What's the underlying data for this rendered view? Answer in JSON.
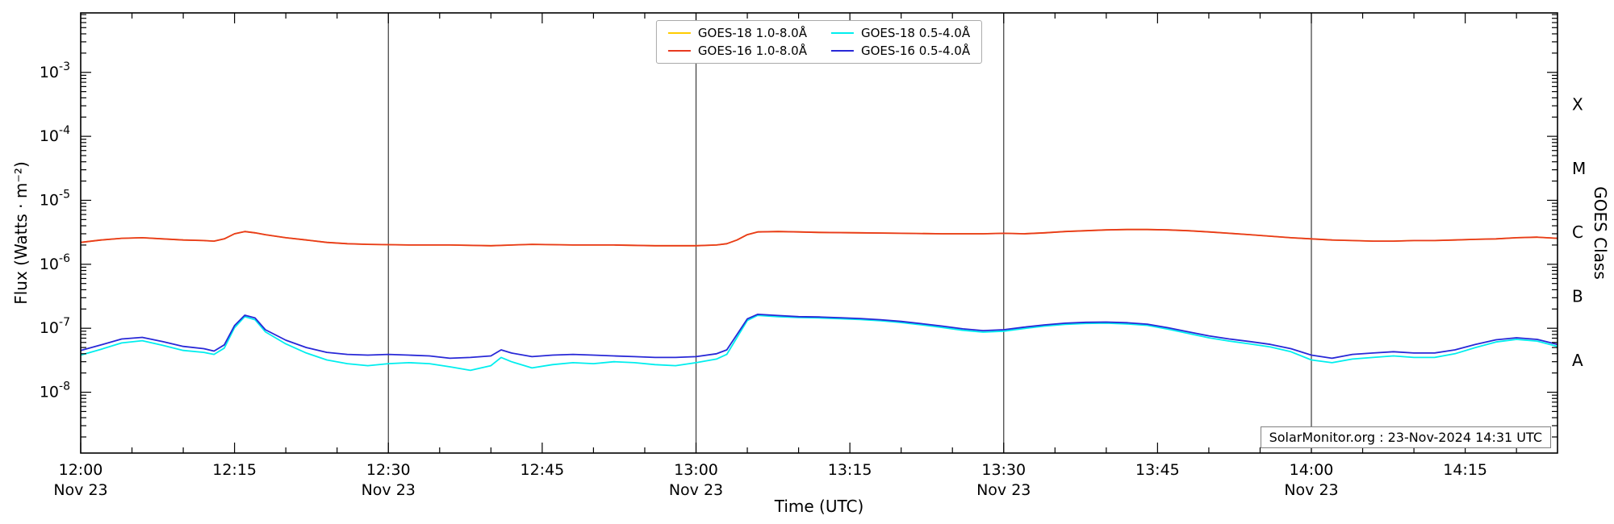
{
  "figure": {
    "background": "#ffffff",
    "watermark": "SolarMonitor.org : 23-Nov-2024 14:31 UTC"
  },
  "axes": {
    "xlabel": "Time (UTC)",
    "ylabel_left": "Flux (Watts · m⁻²)",
    "ylabel_right": "GOES Class"
  },
  "legend": {
    "items": [
      {
        "label": "GOES-18 1.0-8.0Å",
        "color": "#ffcc00"
      },
      {
        "label": "GOES-16 1.0-8.0Å",
        "color": "#e8391f"
      },
      {
        "label": "GOES-18 0.5-4.0Å",
        "color": "#00eeee"
      },
      {
        "label": "GOES-16 0.5-4.0Å",
        "color": "#2828d7"
      }
    ]
  },
  "chart_data": {
    "type": "line",
    "title": "",
    "xlabel": "Time (UTC)",
    "ylabel": "Flux (Watts · m⁻²)",
    "ylabel_right": "GOES Class",
    "y_scale": "log",
    "ylim": [
      1.12e-09,
      0.0085
    ],
    "x_unit": "minutes after 12:00 UTC on 23-Nov-2024",
    "x_range_minutes": [
      0,
      144
    ],
    "y_tick_exponents": [
      -8,
      -7,
      -6,
      -5,
      -4,
      -3
    ],
    "x_ticks": [
      {
        "minutes": 0,
        "label": "12:00",
        "sublabel": "Nov 23"
      },
      {
        "minutes": 15,
        "label": "12:15"
      },
      {
        "minutes": 30,
        "label": "12:30",
        "sublabel": "Nov 23"
      },
      {
        "minutes": 45,
        "label": "12:45"
      },
      {
        "minutes": 60,
        "label": "13:00",
        "sublabel": "Nov 23"
      },
      {
        "minutes": 75,
        "label": "13:15"
      },
      {
        "minutes": 90,
        "label": "13:30",
        "sublabel": "Nov 23"
      },
      {
        "minutes": 105,
        "label": "13:45"
      },
      {
        "minutes": 120,
        "label": "14:00",
        "sublabel": "Nov 23"
      },
      {
        "minutes": 135,
        "label": "14:15"
      }
    ],
    "vertical_lines_minutes": [
      30,
      60,
      90,
      120
    ],
    "goes_classes": [
      {
        "label": "A",
        "flux": 3.16e-08
      },
      {
        "label": "B",
        "flux": 3.16e-07
      },
      {
        "label": "C",
        "flux": 3.16e-06
      },
      {
        "label": "M",
        "flux": 3.16e-05
      },
      {
        "label": "X",
        "flux": 0.000316
      }
    ],
    "series": [
      {
        "name": "GOES-18 1.0-8.0Å",
        "color": "#ffcc00",
        "x": [
          0,
          2,
          4,
          6,
          8,
          10,
          12,
          13,
          14,
          15,
          16,
          17,
          18,
          20,
          22,
          24,
          26,
          28,
          32,
          36,
          40,
          44,
          48,
          52,
          56,
          60,
          62,
          63,
          64,
          65,
          66,
          68,
          70,
          72,
          76,
          80,
          84,
          88,
          90,
          92,
          94,
          96,
          98,
          100,
          102,
          104,
          106,
          108,
          110,
          112,
          114,
          116,
          118,
          120,
          122,
          124,
          126,
          128,
          130,
          132,
          134,
          136,
          138,
          140,
          142,
          144
        ],
        "y": [
          2.2e-06,
          2.4e-06,
          2.55e-06,
          2.6e-06,
          2.5e-06,
          2.4e-06,
          2.35e-06,
          2.3e-06,
          2.5e-06,
          3e-06,
          3.25e-06,
          3.1e-06,
          2.9e-06,
          2.6e-06,
          2.4e-06,
          2.2e-06,
          2.1e-06,
          2.05e-06,
          2e-06,
          2e-06,
          1.95e-06,
          2.05e-06,
          2e-06,
          2e-06,
          1.95e-06,
          1.95e-06,
          2e-06,
          2.1e-06,
          2.4e-06,
          2.9e-06,
          3.2e-06,
          3.25e-06,
          3.2e-06,
          3.15e-06,
          3.1e-06,
          3.05e-06,
          3e-06,
          3e-06,
          3.05e-06,
          3e-06,
          3.1e-06,
          3.25e-06,
          3.35e-06,
          3.45e-06,
          3.5e-06,
          3.5e-06,
          3.45e-06,
          3.35e-06,
          3.2e-06,
          3.05e-06,
          2.9e-06,
          2.75e-06,
          2.6e-06,
          2.5e-06,
          2.4e-06,
          2.35e-06,
          2.3e-06,
          2.3e-06,
          2.35e-06,
          2.35e-06,
          2.4e-06,
          2.45e-06,
          2.5e-06,
          2.6e-06,
          2.65e-06,
          2.55e-06
        ]
      },
      {
        "name": "GOES-16 1.0-8.0Å",
        "color": "#e8391f",
        "x": [
          0,
          2,
          4,
          6,
          8,
          10,
          12,
          13,
          14,
          15,
          16,
          17,
          18,
          20,
          22,
          24,
          26,
          28,
          32,
          36,
          40,
          44,
          48,
          52,
          56,
          60,
          62,
          63,
          64,
          65,
          66,
          68,
          70,
          72,
          76,
          80,
          84,
          88,
          90,
          92,
          94,
          96,
          98,
          100,
          102,
          104,
          106,
          108,
          110,
          112,
          114,
          116,
          118,
          120,
          122,
          124,
          126,
          128,
          130,
          132,
          134,
          136,
          138,
          140,
          142,
          144
        ],
        "y": [
          2.2e-06,
          2.4e-06,
          2.55e-06,
          2.6e-06,
          2.5e-06,
          2.4e-06,
          2.35e-06,
          2.3e-06,
          2.5e-06,
          3e-06,
          3.25e-06,
          3.1e-06,
          2.9e-06,
          2.6e-06,
          2.4e-06,
          2.2e-06,
          2.1e-06,
          2.05e-06,
          2e-06,
          2e-06,
          1.95e-06,
          2.05e-06,
          2e-06,
          2e-06,
          1.95e-06,
          1.95e-06,
          2e-06,
          2.1e-06,
          2.4e-06,
          2.9e-06,
          3.2e-06,
          3.25e-06,
          3.2e-06,
          3.15e-06,
          3.1e-06,
          3.05e-06,
          3e-06,
          3e-06,
          3.05e-06,
          3e-06,
          3.1e-06,
          3.25e-06,
          3.35e-06,
          3.45e-06,
          3.5e-06,
          3.5e-06,
          3.45e-06,
          3.35e-06,
          3.2e-06,
          3.05e-06,
          2.9e-06,
          2.75e-06,
          2.6e-06,
          2.5e-06,
          2.4e-06,
          2.35e-06,
          2.3e-06,
          2.3e-06,
          2.35e-06,
          2.35e-06,
          2.4e-06,
          2.45e-06,
          2.5e-06,
          2.6e-06,
          2.65e-06,
          2.55e-06
        ]
      },
      {
        "name": "GOES-18 0.5-4.0Å",
        "color": "#00eeee",
        "x": [
          0,
          2,
          4,
          6,
          8,
          10,
          12,
          13,
          14,
          15,
          16,
          17,
          18,
          20,
          22,
          24,
          26,
          28,
          30,
          32,
          34,
          36,
          38,
          40,
          41,
          42,
          44,
          46,
          48,
          50,
          52,
          54,
          56,
          58,
          60,
          62,
          63,
          64,
          65,
          66,
          68,
          70,
          72,
          74,
          76,
          78,
          80,
          82,
          84,
          86,
          88,
          90,
          92,
          94,
          96,
          98,
          100,
          102,
          104,
          106,
          108,
          110,
          112,
          114,
          116,
          118,
          120,
          122,
          124,
          126,
          128,
          130,
          132,
          134,
          136,
          138,
          140,
          142,
          144
        ],
        "y": [
          3.8e-08,
          4.7e-08,
          5.9e-08,
          6.4e-08,
          5.4e-08,
          4.5e-08,
          4.2e-08,
          3.9e-08,
          4.9e-08,
          1.02e-07,
          1.52e-07,
          1.36e-07,
          8.8e-08,
          5.7e-08,
          4.1e-08,
          3.2e-08,
          2.8e-08,
          2.6e-08,
          2.8e-08,
          2.9e-08,
          2.8e-08,
          2.5e-08,
          2.2e-08,
          2.6e-08,
          3.5e-08,
          3e-08,
          2.4e-08,
          2.7e-08,
          2.9e-08,
          2.8e-08,
          3e-08,
          2.9e-08,
          2.7e-08,
          2.6e-08,
          2.9e-08,
          3.3e-08,
          3.9e-08,
          7.2e-08,
          1.32e-07,
          1.59e-07,
          1.52e-07,
          1.47e-07,
          1.45e-07,
          1.41e-07,
          1.37e-07,
          1.31e-07,
          1.23e-07,
          1.13e-07,
          1.03e-07,
          9.3e-08,
          8.7e-08,
          9e-08,
          9.9e-08,
          1.08e-07,
          1.15e-07,
          1.19e-07,
          1.2e-07,
          1.17e-07,
          1.11e-07,
          9.7e-08,
          8.3e-08,
          7.1e-08,
          6.3e-08,
          5.7e-08,
          5.1e-08,
          4.3e-08,
          3.2e-08,
          2.9e-08,
          3.3e-08,
          3.5e-08,
          3.7e-08,
          3.5e-08,
          3.5e-08,
          4e-08,
          5e-08,
          6.1e-08,
          6.7e-08,
          6.3e-08,
          5.2e-08
        ]
      },
      {
        "name": "GOES-16 0.5-4.0Å",
        "color": "#2828d7",
        "x": [
          0,
          2,
          4,
          6,
          8,
          10,
          12,
          13,
          14,
          15,
          16,
          17,
          18,
          20,
          22,
          24,
          26,
          28,
          30,
          32,
          34,
          36,
          38,
          40,
          41,
          42,
          44,
          46,
          48,
          50,
          52,
          54,
          56,
          58,
          60,
          62,
          63,
          64,
          65,
          66,
          68,
          70,
          72,
          74,
          76,
          78,
          80,
          82,
          84,
          86,
          88,
          90,
          92,
          94,
          96,
          98,
          100,
          102,
          104,
          106,
          108,
          110,
          112,
          114,
          116,
          118,
          120,
          122,
          124,
          126,
          128,
          130,
          132,
          134,
          136,
          138,
          140,
          142,
          144
        ],
        "y": [
          4.5e-08,
          5.5e-08,
          6.8e-08,
          7.2e-08,
          6.2e-08,
          5.2e-08,
          4.8e-08,
          4.4e-08,
          5.5e-08,
          1.1e-07,
          1.6e-07,
          1.45e-07,
          9.5e-08,
          6.5e-08,
          5e-08,
          4.2e-08,
          3.9e-08,
          3.8e-08,
          3.9e-08,
          3.8e-08,
          3.7e-08,
          3.4e-08,
          3.5e-08,
          3.7e-08,
          4.6e-08,
          4.1e-08,
          3.6e-08,
          3.8e-08,
          3.9e-08,
          3.8e-08,
          3.7e-08,
          3.6e-08,
          3.5e-08,
          3.5e-08,
          3.6e-08,
          4e-08,
          4.6e-08,
          8e-08,
          1.4e-07,
          1.65e-07,
          1.58e-07,
          1.52e-07,
          1.5e-07,
          1.46e-07,
          1.42e-07,
          1.36e-07,
          1.28e-07,
          1.18e-07,
          1.08e-07,
          9.8e-08,
          9.2e-08,
          9.5e-08,
          1.04e-07,
          1.13e-07,
          1.2e-07,
          1.24e-07,
          1.25e-07,
          1.22e-07,
          1.16e-07,
          1.02e-07,
          8.8e-08,
          7.6e-08,
          6.8e-08,
          6.2e-08,
          5.6e-08,
          4.8e-08,
          3.8e-08,
          3.4e-08,
          3.9e-08,
          4.1e-08,
          4.3e-08,
          4.1e-08,
          4.1e-08,
          4.6e-08,
          5.6e-08,
          6.6e-08,
          7.1e-08,
          6.7e-08,
          5.6e-08
        ]
      }
    ]
  }
}
